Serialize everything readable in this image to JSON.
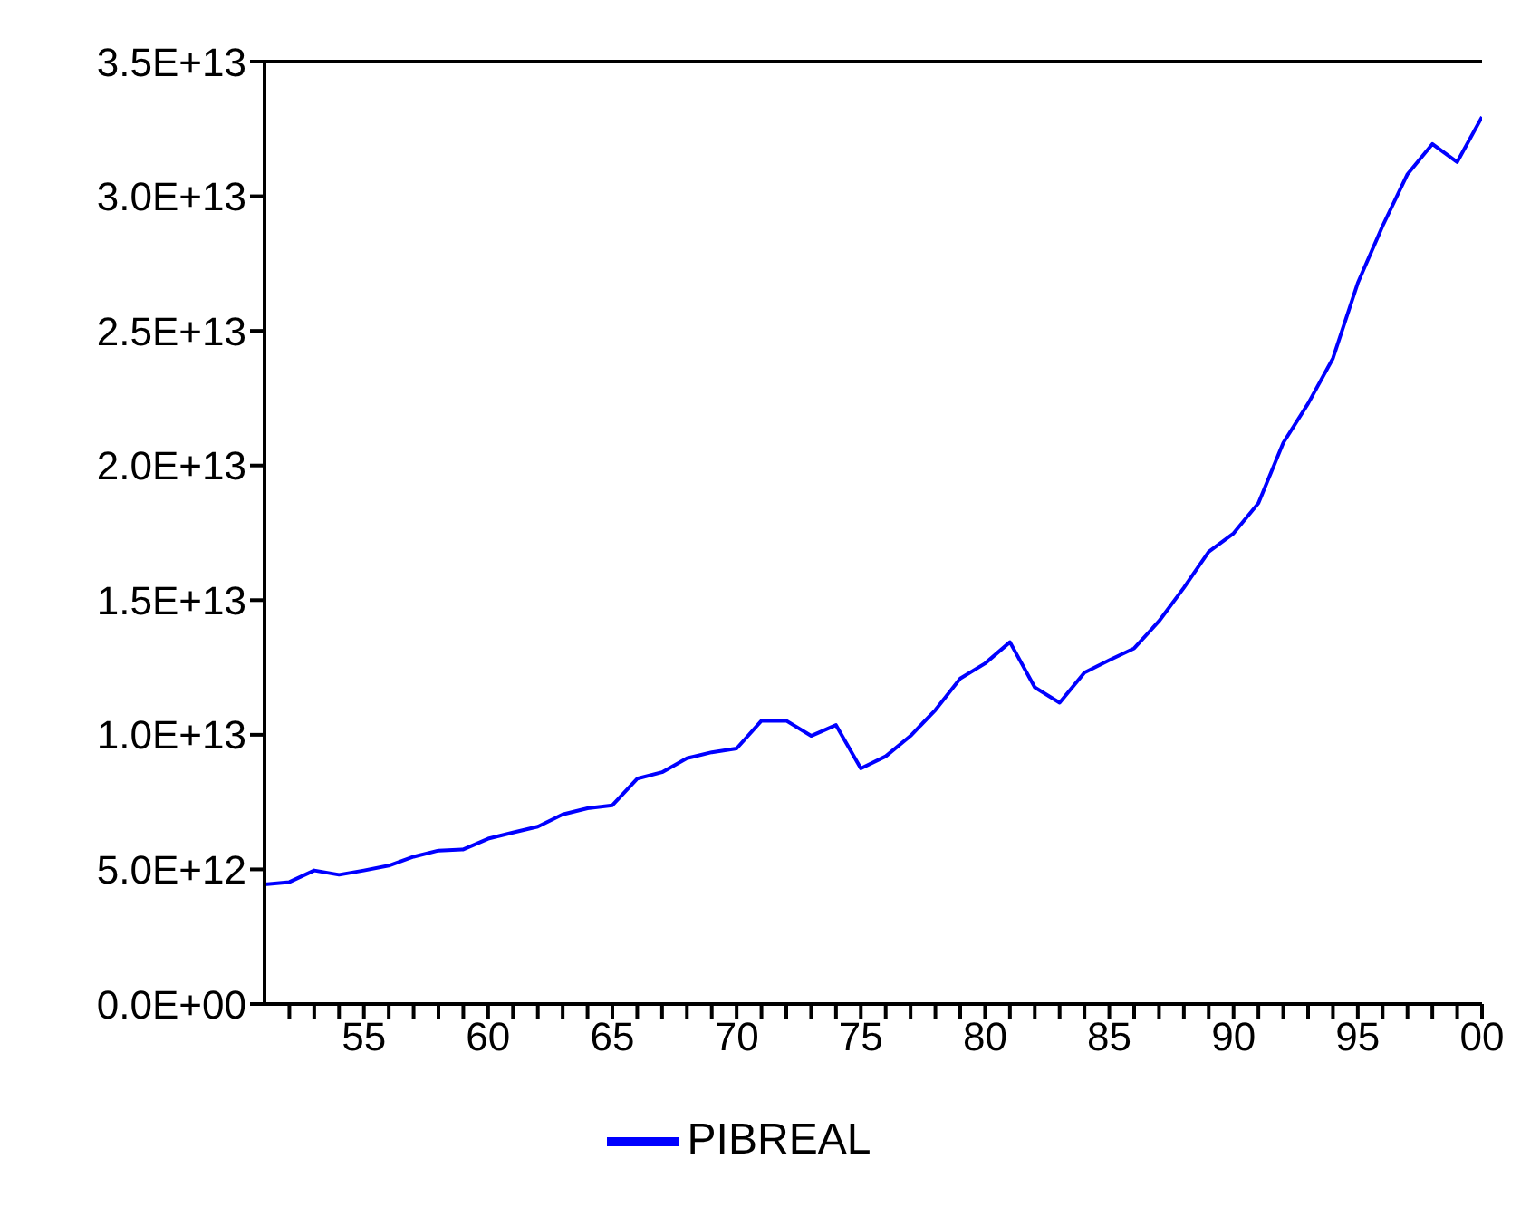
{
  "chart_data": {
    "type": "line",
    "x": [
      1951,
      1952,
      1953,
      1954,
      1955,
      1956,
      1957,
      1958,
      1959,
      1960,
      1961,
      1962,
      1963,
      1964,
      1965,
      1966,
      1967,
      1968,
      1969,
      1970,
      1971,
      1972,
      1973,
      1974,
      1975,
      1976,
      1977,
      1978,
      1979,
      1980,
      1981,
      1982,
      1983,
      1984,
      1985,
      1986,
      1987,
      1988,
      1989,
      1990,
      1991,
      1992,
      1993,
      1994,
      1995,
      1996,
      1997,
      1998,
      1999,
      2000
    ],
    "series": [
      {
        "name": "PIBREAL",
        "color": "#0000ff",
        "values": [
          4440000000000,
          4530000000000,
          4960000000000,
          4800000000000,
          4960000000000,
          5140000000000,
          5470000000000,
          5700000000000,
          5740000000000,
          6140000000000,
          6370000000000,
          6590000000000,
          7040000000000,
          7270000000000,
          7380000000000,
          8370000000000,
          8610000000000,
          9130000000000,
          9350000000000,
          9490000000000,
          10520000000000,
          10520000000000,
          9960000000000,
          10360000000000,
          8750000000000,
          9200000000000,
          9960000000000,
          10920000000000,
          12090000000000,
          12650000000000,
          13440000000000,
          11760000000000,
          11190000000000,
          12310000000000,
          12770000000000,
          13210000000000,
          14220000000000,
          15460000000000,
          16800000000000,
          17480000000000,
          18600000000000,
          20840000000000,
          22300000000000,
          23980000000000,
          26780000000000,
          28900000000000,
          30820000000000,
          31940000000000,
          31270000000000,
          32950000000000
        ]
      }
    ],
    "xlim": [
      1951,
      2000
    ],
    "xticks": [
      {
        "value": 1952,
        "label": null
      },
      {
        "value": 1953,
        "label": null
      },
      {
        "value": 1954,
        "label": null
      },
      {
        "value": 1955,
        "label": "55"
      },
      {
        "value": 1956,
        "label": null
      },
      {
        "value": 1957,
        "label": null
      },
      {
        "value": 1958,
        "label": null
      },
      {
        "value": 1959,
        "label": null
      },
      {
        "value": 1960,
        "label": "60"
      },
      {
        "value": 1961,
        "label": null
      },
      {
        "value": 1962,
        "label": null
      },
      {
        "value": 1963,
        "label": null
      },
      {
        "value": 1964,
        "label": null
      },
      {
        "value": 1965,
        "label": "65"
      },
      {
        "value": 1966,
        "label": null
      },
      {
        "value": 1967,
        "label": null
      },
      {
        "value": 1968,
        "label": null
      },
      {
        "value": 1969,
        "label": null
      },
      {
        "value": 1970,
        "label": "70"
      },
      {
        "value": 1971,
        "label": null
      },
      {
        "value": 1972,
        "label": null
      },
      {
        "value": 1973,
        "label": null
      },
      {
        "value": 1974,
        "label": null
      },
      {
        "value": 1975,
        "label": "75"
      },
      {
        "value": 1976,
        "label": null
      },
      {
        "value": 1977,
        "label": null
      },
      {
        "value": 1978,
        "label": null
      },
      {
        "value": 1979,
        "label": null
      },
      {
        "value": 1980,
        "label": "80"
      },
      {
        "value": 1981,
        "label": null
      },
      {
        "value": 1982,
        "label": null
      },
      {
        "value": 1983,
        "label": null
      },
      {
        "value": 1984,
        "label": null
      },
      {
        "value": 1985,
        "label": "85"
      },
      {
        "value": 1986,
        "label": null
      },
      {
        "value": 1987,
        "label": null
      },
      {
        "value": 1988,
        "label": null
      },
      {
        "value": 1989,
        "label": null
      },
      {
        "value": 1990,
        "label": "90"
      },
      {
        "value": 1991,
        "label": null
      },
      {
        "value": 1992,
        "label": null
      },
      {
        "value": 1993,
        "label": null
      },
      {
        "value": 1994,
        "label": null
      },
      {
        "value": 1995,
        "label": "95"
      },
      {
        "value": 1996,
        "label": null
      },
      {
        "value": 1997,
        "label": null
      },
      {
        "value": 1998,
        "label": null
      },
      {
        "value": 1999,
        "label": null
      },
      {
        "value": 2000,
        "label": "00"
      }
    ],
    "ylim": [
      0,
      35000000000000
    ],
    "yticks": [
      {
        "value": 0,
        "label": "0.0E+00"
      },
      {
        "value": 5000000000000,
        "label": "5.0E+12"
      },
      {
        "value": 10000000000000,
        "label": "1.0E+13"
      },
      {
        "value": 15000000000000,
        "label": "1.5E+13"
      },
      {
        "value": 20000000000000,
        "label": "2.0E+13"
      },
      {
        "value": 25000000000000,
        "label": "2.5E+13"
      },
      {
        "value": 30000000000000,
        "label": "3.0E+13"
      },
      {
        "value": 35000000000000,
        "label": "3.5E+13"
      }
    ],
    "grid": false,
    "legend": "bottom",
    "marker": "none",
    "line_style": "solid"
  }
}
